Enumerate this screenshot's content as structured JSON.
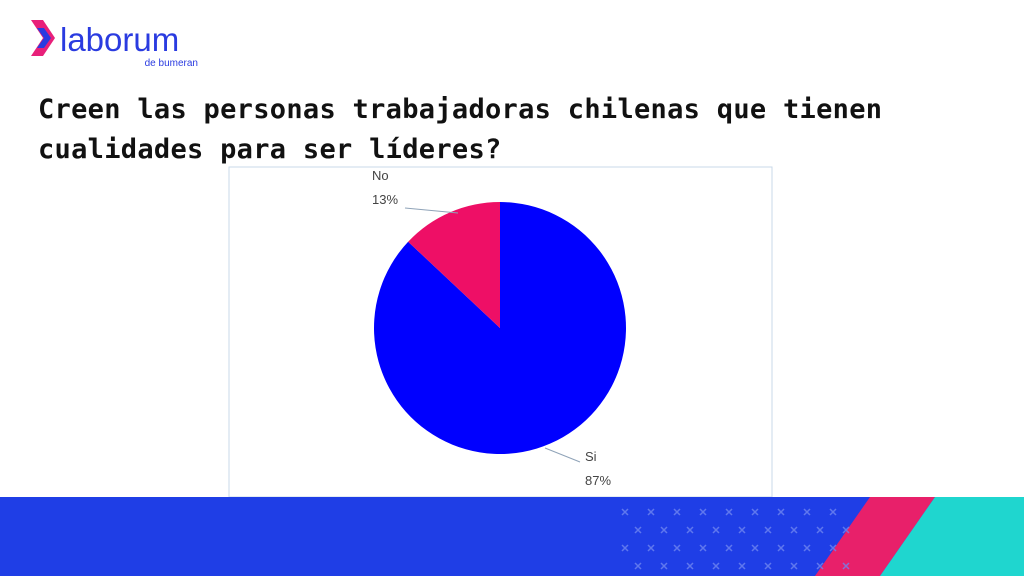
{
  "logo": {
    "name": "laborum",
    "tagline": "de bumeran"
  },
  "chart_data": {
    "type": "pie",
    "title": "Creen las personas trabajadoras chilenas que tienen cualidades para ser líderes?",
    "categories": [
      "Si",
      "No"
    ],
    "values": [
      87,
      13
    ],
    "value_labels": [
      "87%",
      "13%"
    ],
    "colors": [
      "#0000ff",
      "#ee0f66"
    ]
  }
}
